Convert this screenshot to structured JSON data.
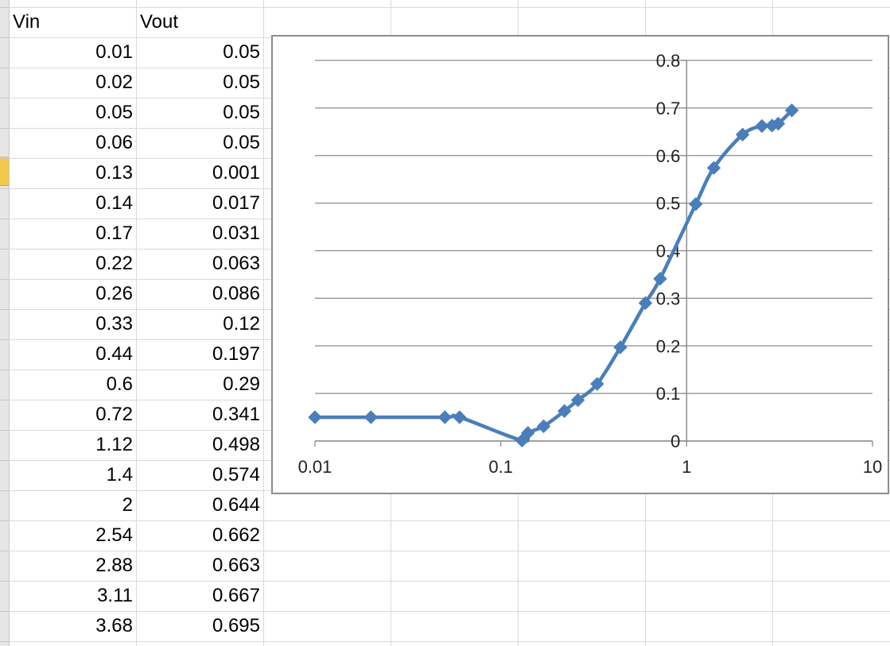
{
  "sheet": {
    "headers": [
      "Vin",
      "Vout"
    ],
    "rows": [
      [
        "0.01",
        "0.05"
      ],
      [
        "0.02",
        "0.05"
      ],
      [
        "0.05",
        "0.05"
      ],
      [
        "0.06",
        "0.05"
      ],
      [
        "0.13",
        "0.001"
      ],
      [
        "0.14",
        "0.017"
      ],
      [
        "0.17",
        "0.031"
      ],
      [
        "0.22",
        "0.063"
      ],
      [
        "0.26",
        "0.086"
      ],
      [
        "0.33",
        "0.12"
      ],
      [
        "0.44",
        "0.197"
      ],
      [
        "0.6",
        "0.29"
      ],
      [
        "0.72",
        "0.341"
      ],
      [
        "1.12",
        "0.498"
      ],
      [
        "1.4",
        "0.574"
      ],
      [
        "2",
        "0.644"
      ],
      [
        "2.54",
        "0.662"
      ],
      [
        "2.88",
        "0.663"
      ],
      [
        "3.11",
        "0.667"
      ],
      [
        "3.68",
        "0.695"
      ]
    ]
  },
  "chart_data": {
    "type": "scatter",
    "x_scale": "log",
    "xlim": [
      0.01,
      10
    ],
    "ylim": [
      0,
      0.8
    ],
    "x_ticks": [
      "0.01",
      "0.1",
      "1",
      "10"
    ],
    "y_ticks": [
      "0",
      "0.1",
      "0.2",
      "0.3",
      "0.4",
      "0.5",
      "0.6",
      "0.7",
      "0.8"
    ],
    "y_axis_crosses_x_at": 1,
    "grid": "horizontal",
    "legend": "none",
    "marker": "diamond",
    "line": "smoothed",
    "series_color": "#4a7ebb",
    "series": [
      {
        "x": [
          0.01,
          0.02,
          0.05,
          0.06,
          0.13,
          0.14,
          0.17,
          0.22,
          0.26,
          0.33,
          0.44,
          0.6,
          0.72,
          1.12,
          1.4,
          2,
          2.54,
          2.88,
          3.11,
          3.68
        ],
        "y": [
          0.05,
          0.05,
          0.05,
          0.05,
          0.001,
          0.017,
          0.031,
          0.063,
          0.086,
          0.12,
          0.197,
          0.29,
          0.341,
          0.498,
          0.574,
          0.644,
          0.662,
          0.663,
          0.667,
          0.695
        ]
      }
    ]
  }
}
